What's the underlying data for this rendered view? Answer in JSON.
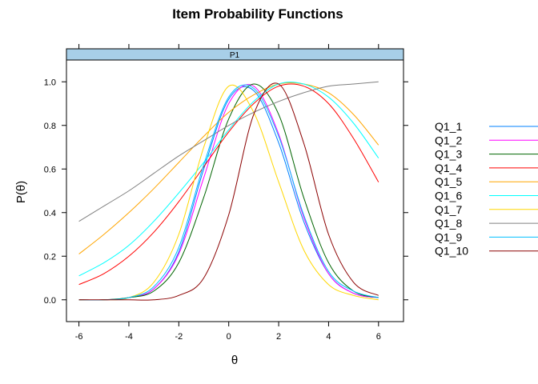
{
  "chart_data": {
    "type": "line",
    "title": "Item Probability Functions",
    "strip_label": "P1",
    "xlabel": "θ",
    "ylabel": "P(θ)",
    "xlim": [
      -6.5,
      7
    ],
    "ylim": [
      -0.1,
      1.1
    ],
    "x_ticks": [
      "-6",
      "-4",
      "-2",
      "0",
      "2",
      "4",
      "6"
    ],
    "y_ticks": [
      "0.0",
      "0.2",
      "0.4",
      "0.6",
      "0.8",
      "1.0"
    ],
    "grid": false,
    "legend_position": "right",
    "x": [
      -6,
      -5,
      -4,
      -3,
      -2,
      -1,
      0,
      1,
      2,
      3,
      4,
      5,
      6
    ],
    "series": [
      {
        "name": "Q1_1",
        "color": "#0080ff",
        "values": [
          0.0,
          0.0,
          0.01,
          0.05,
          0.22,
          0.6,
          0.92,
          0.96,
          0.72,
          0.36,
          0.12,
          0.03,
          0.01
        ]
      },
      {
        "name": "Q1_2",
        "color": "#ff00ff",
        "values": [
          0.0,
          0.0,
          0.01,
          0.05,
          0.21,
          0.56,
          0.9,
          0.98,
          0.76,
          0.38,
          0.12,
          0.03,
          0.01
        ]
      },
      {
        "name": "Q1_3",
        "color": "#006400",
        "values": [
          0.0,
          0.0,
          0.01,
          0.04,
          0.17,
          0.47,
          0.83,
          0.99,
          0.85,
          0.47,
          0.17,
          0.04,
          0.01
        ]
      },
      {
        "name": "Q1_4",
        "color": "#ff0000",
        "values": [
          0.07,
          0.12,
          0.2,
          0.31,
          0.45,
          0.61,
          0.77,
          0.9,
          0.98,
          0.98,
          0.9,
          0.74,
          0.54
        ]
      },
      {
        "name": "Q1_5",
        "color": "#ffa500",
        "values": [
          0.21,
          0.3,
          0.4,
          0.51,
          0.63,
          0.75,
          0.86,
          0.94,
          0.99,
          0.99,
          0.95,
          0.85,
          0.71
        ]
      },
      {
        "name": "Q1_6",
        "color": "#00ffff",
        "values": [
          0.11,
          0.17,
          0.25,
          0.36,
          0.49,
          0.63,
          0.78,
          0.91,
          0.99,
          0.99,
          0.93,
          0.81,
          0.65
        ]
      },
      {
        "name": "Q1_7",
        "color": "#ffd700",
        "values": [
          0.0,
          0.0,
          0.01,
          0.08,
          0.3,
          0.7,
          0.98,
          0.86,
          0.54,
          0.23,
          0.07,
          0.02,
          0.0
        ]
      },
      {
        "name": "Q1_8",
        "color": "#808080",
        "values": [
          0.36,
          0.43,
          0.5,
          0.58,
          0.66,
          0.73,
          0.8,
          0.86,
          0.91,
          0.95,
          0.98,
          0.99,
          1.0
        ]
      },
      {
        "name": "Q1_9",
        "color": "#00bfff",
        "values": [
          0.0,
          0.0,
          0.01,
          0.06,
          0.24,
          0.62,
          0.93,
          0.97,
          0.75,
          0.39,
          0.13,
          0.04,
          0.01
        ]
      },
      {
        "name": "Q1_10",
        "color": "#8b0000",
        "values": [
          0.0,
          0.0,
          0.0,
          0.0,
          0.02,
          0.1,
          0.39,
          0.85,
          0.99,
          0.72,
          0.3,
          0.08,
          0.02
        ]
      }
    ]
  }
}
